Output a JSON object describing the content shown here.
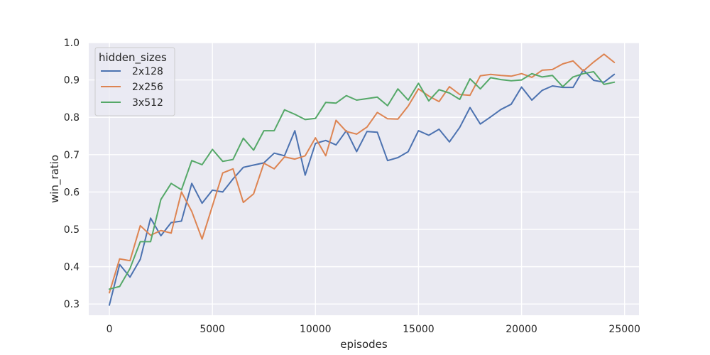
{
  "chart_data": {
    "type": "line",
    "xlabel": "episodes",
    "ylabel": "win_ratio",
    "xlim": [
      -1000,
      25700
    ],
    "ylim": [
      0.27,
      1.0
    ],
    "xticks": [
      0,
      5000,
      10000,
      15000,
      20000,
      25000
    ],
    "yticks": [
      0.3,
      0.4,
      0.5,
      0.6,
      0.7,
      0.8,
      0.9,
      1.0
    ],
    "grid": true,
    "legend": {
      "title": "hidden_sizes",
      "placement": "top-left"
    },
    "x": [
      0,
      500,
      1000,
      1500,
      2000,
      2500,
      3000,
      3500,
      4000,
      4500,
      5000,
      5500,
      6000,
      6500,
      7000,
      7500,
      8000,
      8500,
      9000,
      9500,
      10000,
      10500,
      11000,
      11500,
      12000,
      12500,
      13000,
      13500,
      14000,
      14500,
      15000,
      15500,
      16000,
      16500,
      17000,
      17500,
      18000,
      18500,
      19000,
      19500,
      20000,
      20500,
      21000,
      21500,
      22000,
      22500,
      23000,
      23500,
      24000,
      24500
    ],
    "series": [
      {
        "name": "2x128",
        "color": "#4c72b0",
        "values": [
          0.297,
          0.406,
          0.372,
          0.42,
          0.53,
          0.483,
          0.518,
          0.522,
          0.623,
          0.57,
          0.605,
          0.6,
          0.635,
          0.666,
          0.672,
          0.678,
          0.704,
          0.697,
          0.764,
          0.645,
          0.73,
          0.738,
          0.726,
          0.764,
          0.708,
          0.762,
          0.76,
          0.684,
          0.692,
          0.708,
          0.764,
          0.752,
          0.768,
          0.734,
          0.773,
          0.826,
          0.782,
          0.801,
          0.821,
          0.835,
          0.881,
          0.846,
          0.872,
          0.884,
          0.88,
          0.88,
          0.927,
          0.899,
          0.894,
          0.915
        ]
      },
      {
        "name": "2x256",
        "color": "#dd8452",
        "values": [
          0.33,
          0.421,
          0.416,
          0.51,
          0.484,
          0.497,
          0.49,
          0.6,
          0.548,
          0.474,
          0.563,
          0.651,
          0.662,
          0.572,
          0.595,
          0.677,
          0.662,
          0.694,
          0.688,
          0.697,
          0.745,
          0.697,
          0.792,
          0.762,
          0.755,
          0.774,
          0.813,
          0.796,
          0.795,
          0.83,
          0.876,
          0.857,
          0.842,
          0.882,
          0.861,
          0.859,
          0.911,
          0.915,
          0.912,
          0.91,
          0.917,
          0.907,
          0.926,
          0.928,
          0.943,
          0.951,
          0.924,
          0.948,
          0.969,
          0.947
        ]
      },
      {
        "name": "3x512",
        "color": "#55a868",
        "values": [
          0.34,
          0.347,
          0.395,
          0.467,
          0.467,
          0.58,
          0.623,
          0.606,
          0.684,
          0.673,
          0.714,
          0.682,
          0.687,
          0.744,
          0.712,
          0.764,
          0.764,
          0.82,
          0.808,
          0.794,
          0.797,
          0.84,
          0.838,
          0.858,
          0.846,
          0.85,
          0.854,
          0.831,
          0.876,
          0.846,
          0.891,
          0.844,
          0.874,
          0.865,
          0.848,
          0.903,
          0.876,
          0.906,
          0.901,
          0.898,
          0.9,
          0.917,
          0.908,
          0.912,
          0.882,
          0.908,
          0.917,
          0.922,
          0.888,
          0.894
        ]
      }
    ]
  }
}
